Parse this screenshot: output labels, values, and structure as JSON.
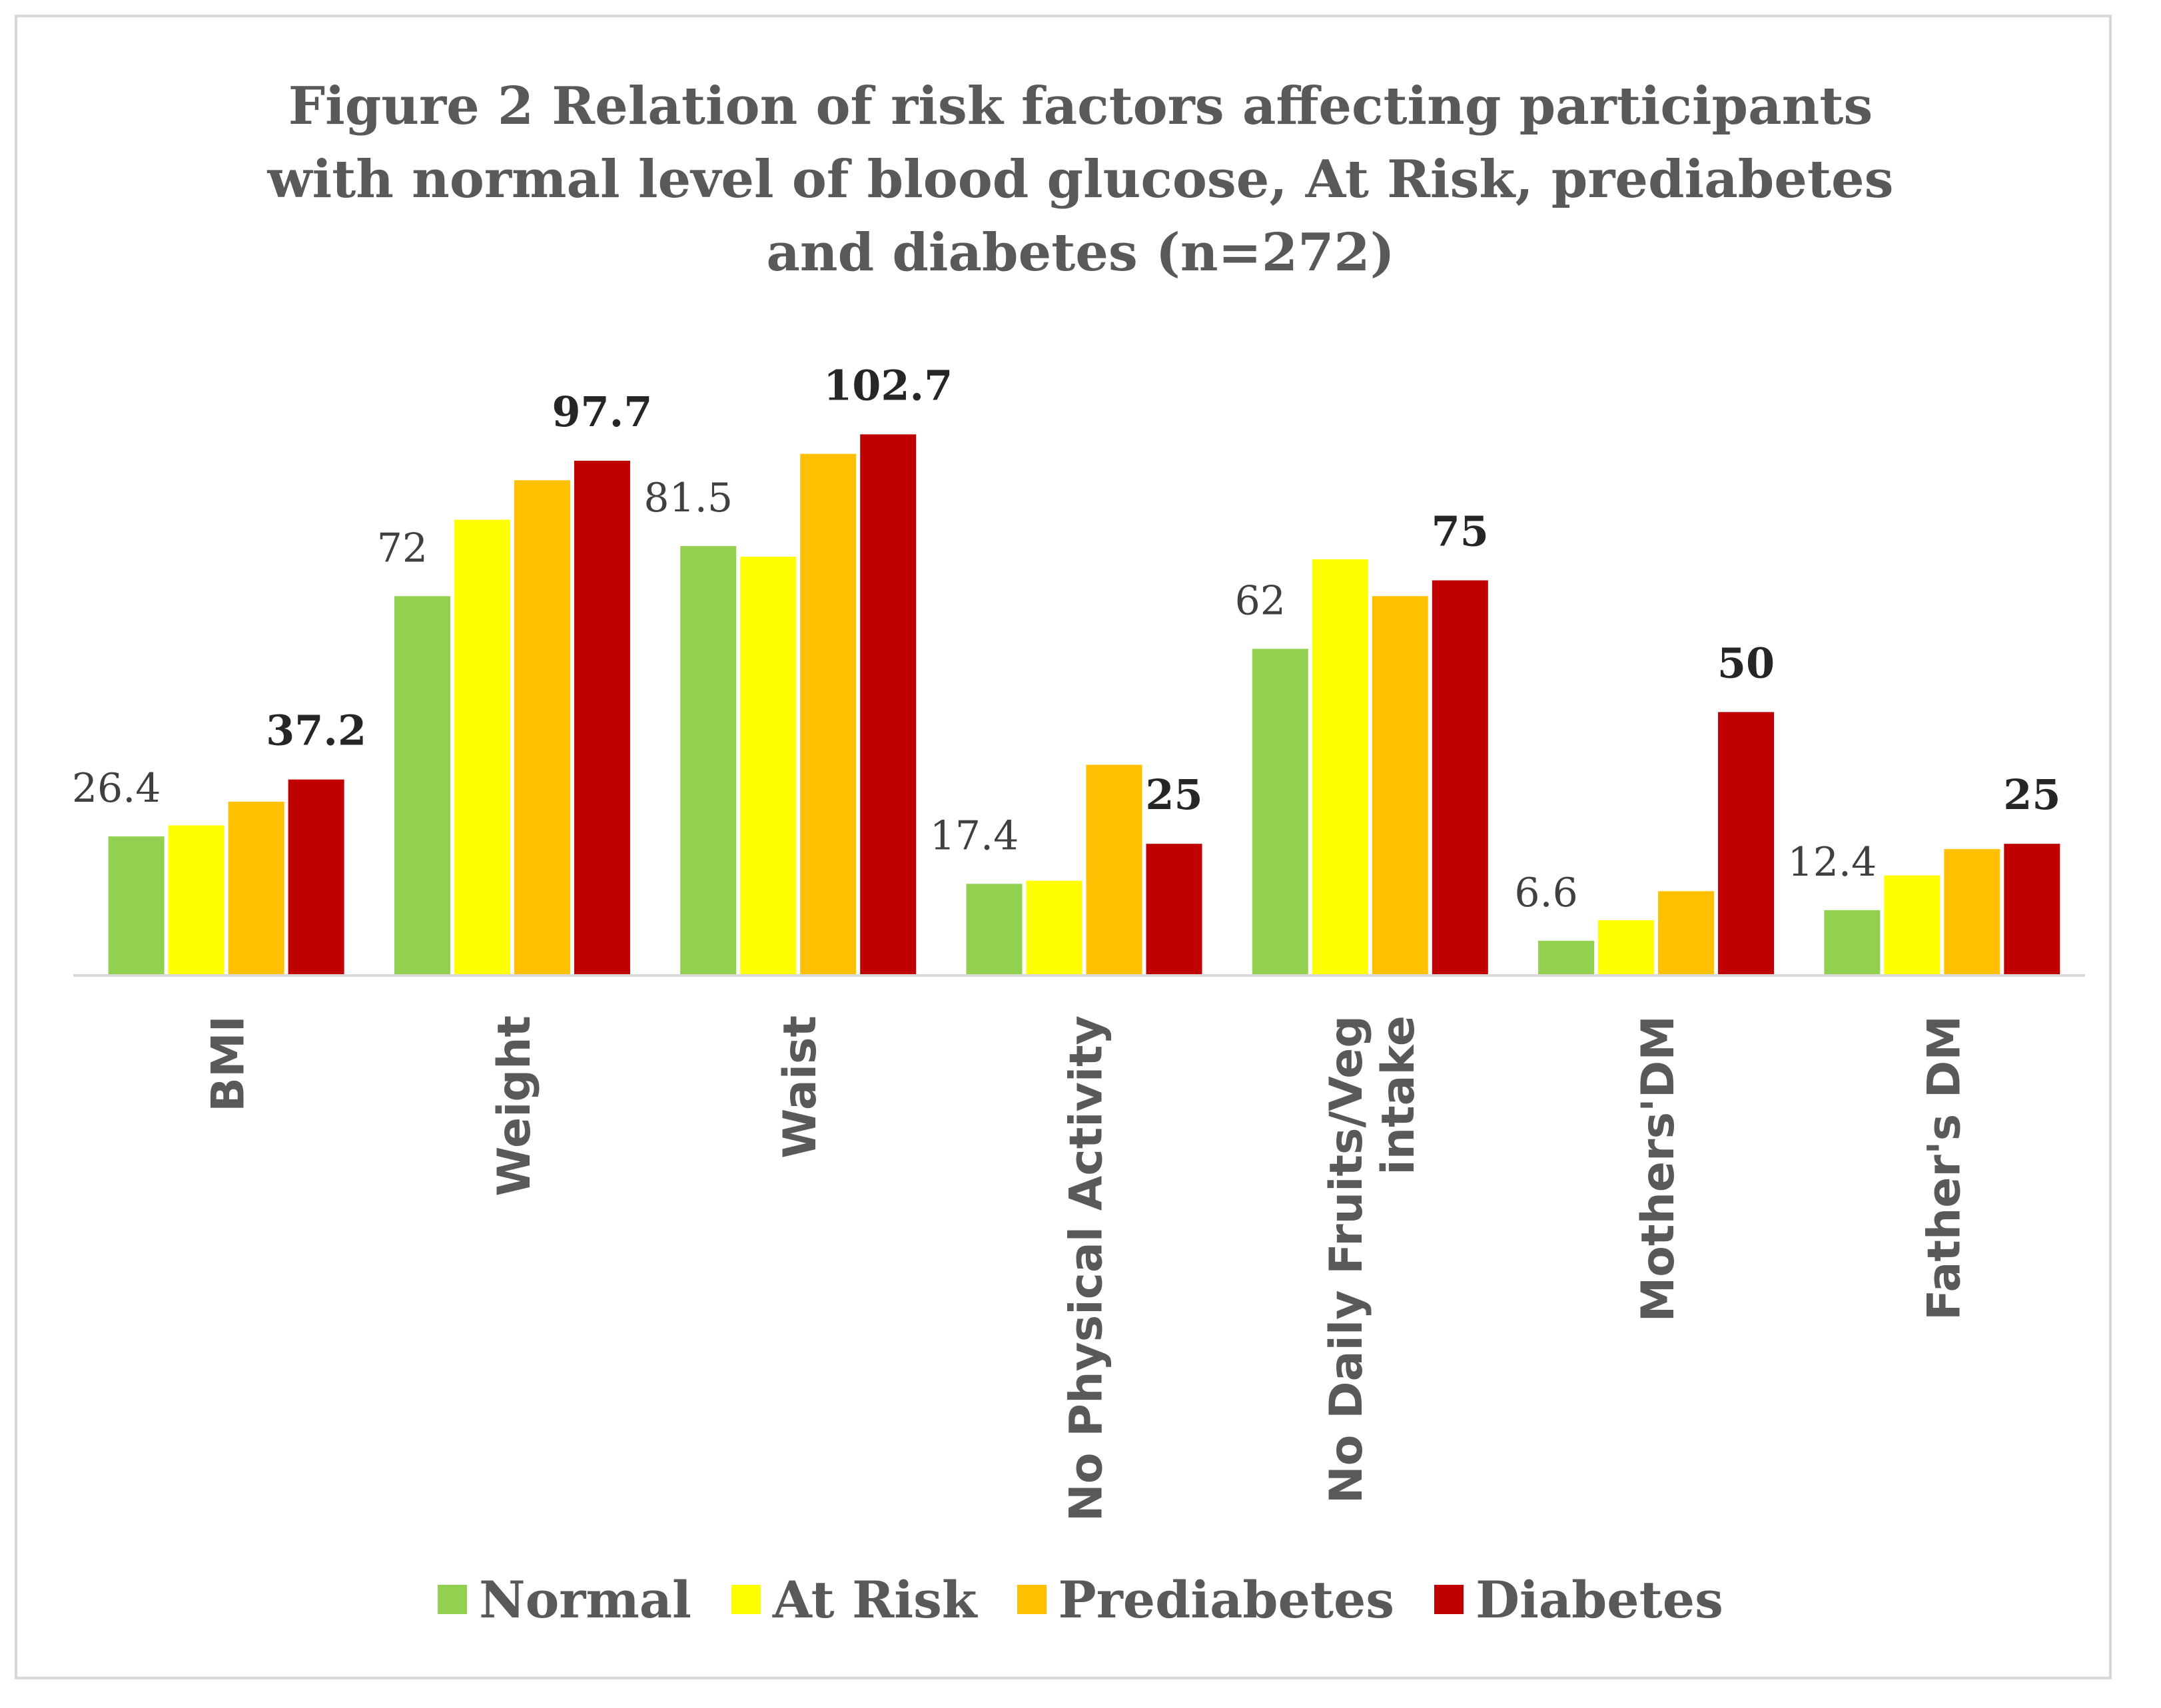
{
  "chart_data": {
    "type": "bar",
    "title_lines": [
      "Figure 2 Relation of risk factors affecting participants",
      "with normal level of blood glucose, At Risk, prediabetes",
      "and diabetes (n=272)"
    ],
    "categories": [
      "BMI",
      "Weight",
      "Waist",
      "No Physical Activity",
      "No Daily Fruits/Veg intake",
      "Mothers'DM",
      "Father's DM"
    ],
    "category_label_lines": [
      [
        "BMI"
      ],
      [
        "Weight"
      ],
      [
        "Waist"
      ],
      [
        "No Physical Activity"
      ],
      [
        "No Daily Fruits/Veg",
        "intake"
      ],
      [
        "Mothers'DM"
      ],
      [
        "Father's DM"
      ]
    ],
    "series": [
      {
        "name": "Normal",
        "color": "#92d050",
        "values": [
          26.4,
          72,
          81.5,
          17.4,
          62,
          6.6,
          12.4
        ],
        "labels": [
          "26.4",
          "72",
          "81.5",
          "17.4",
          "62",
          "6.6",
          "12.4"
        ]
      },
      {
        "name": "At Risk",
        "color": "#ffff00",
        "values": [
          28.5,
          86.5,
          79.5,
          18,
          79,
          10.5,
          19
        ],
        "labels": [
          null,
          null,
          null,
          null,
          null,
          null,
          null
        ]
      },
      {
        "name": "Prediabetes",
        "color": "#ffc000",
        "values": [
          33,
          94,
          99,
          40,
          72,
          16,
          24
        ],
        "labels": [
          null,
          null,
          null,
          null,
          null,
          null,
          null
        ]
      },
      {
        "name": "Diabetes",
        "color": "#c00000",
        "values": [
          37.2,
          97.7,
          102.7,
          25,
          75,
          50,
          25
        ],
        "labels": [
          "37.2",
          "97.7",
          "102.7",
          "25",
          "75",
          "50",
          "25"
        ]
      }
    ],
    "ylim": [
      0,
      115
    ],
    "grid": false,
    "legend_position": "bottom",
    "xlabel": "",
    "ylabel": ""
  }
}
